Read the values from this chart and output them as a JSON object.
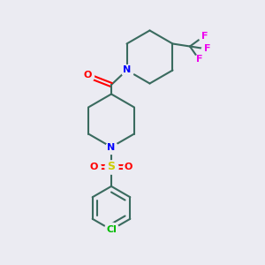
{
  "bg_color": "#ebebf2",
  "bond_color": "#3a6b5f",
  "N_color": "#0000ff",
  "O_color": "#ff0000",
  "S_color": "#cccc00",
  "F_color": "#ee00ee",
  "Cl_color": "#00bb00",
  "line_width": 1.5,
  "fig_size": [
    3.0,
    3.0
  ],
  "dpi": 100,
  "xlim": [
    0,
    10
  ],
  "ylim": [
    0,
    10
  ]
}
